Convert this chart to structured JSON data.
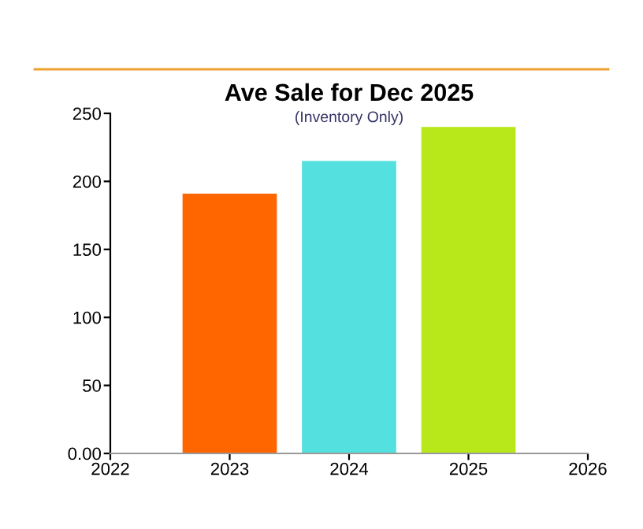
{
  "chart_data": {
    "type": "bar",
    "title": "Ave Sale for Dec 2025",
    "subtitle": "(Inventory Only)",
    "x": [
      2023,
      2024,
      2025
    ],
    "values": [
      191,
      215,
      240
    ],
    "colors": [
      "#ff6600",
      "#55e0e0",
      "#b8e81a"
    ],
    "xlim": [
      2022,
      2026
    ],
    "xticks": [
      2022,
      2023,
      2024,
      2025,
      2026
    ],
    "ylim": [
      0,
      250
    ],
    "yticks": [
      {
        "value": 0,
        "label": "0.00"
      },
      50,
      100,
      150,
      200,
      250
    ],
    "grid": false,
    "legend": false
  }
}
